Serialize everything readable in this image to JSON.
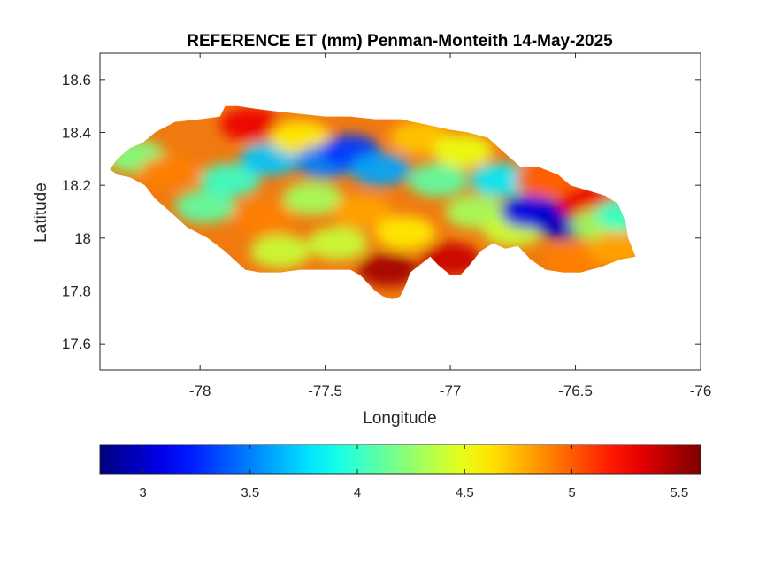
{
  "chart_data": {
    "type": "heatmap",
    "title": "REFERENCE ET (mm) Penman-Monteith 14-May-2025",
    "xlabel": "Longitude",
    "ylabel": "Latitude",
    "xlim": [
      -78.4,
      -76
    ],
    "ylim": [
      17.5,
      18.7
    ],
    "xticks": [
      -78,
      -77.5,
      -77,
      -76.5,
      -76
    ],
    "yticks": [
      17.6,
      17.8,
      18,
      18.2,
      18.4,
      18.6
    ],
    "colormap": "jet",
    "color_limits": [
      2.8,
      5.6
    ],
    "colorbar_ticks": [
      3,
      3.5,
      4,
      4.5,
      5,
      5.5
    ],
    "colorbar_location": "southoutside",
    "grid": false,
    "region_outline": [
      [
        -78.36,
        18.26
      ],
      [
        -78.33,
        18.3
      ],
      [
        -78.28,
        18.34
      ],
      [
        -78.23,
        18.36
      ],
      [
        -78.18,
        18.4
      ],
      [
        -78.1,
        18.44
      ],
      [
        -78.0,
        18.45
      ],
      [
        -77.92,
        18.46
      ],
      [
        -77.9,
        18.5
      ],
      [
        -77.85,
        18.5
      ],
      [
        -77.78,
        18.49
      ],
      [
        -77.7,
        18.48
      ],
      [
        -77.6,
        18.47
      ],
      [
        -77.5,
        18.46
      ],
      [
        -77.4,
        18.46
      ],
      [
        -77.3,
        18.45
      ],
      [
        -77.2,
        18.45
      ],
      [
        -77.1,
        18.43
      ],
      [
        -77.0,
        18.41
      ],
      [
        -76.93,
        18.4
      ],
      [
        -76.85,
        18.38
      ],
      [
        -76.78,
        18.32
      ],
      [
        -76.72,
        18.27
      ],
      [
        -76.65,
        18.27
      ],
      [
        -76.57,
        18.24
      ],
      [
        -76.52,
        18.2
      ],
      [
        -76.45,
        18.18
      ],
      [
        -76.38,
        18.16
      ],
      [
        -76.33,
        18.13
      ],
      [
        -76.3,
        18.06
      ],
      [
        -76.29,
        18.0
      ],
      [
        -76.26,
        17.93
      ],
      [
        -76.32,
        17.92
      ],
      [
        -76.4,
        17.89
      ],
      [
        -76.48,
        17.87
      ],
      [
        -76.55,
        17.87
      ],
      [
        -76.62,
        17.88
      ],
      [
        -76.68,
        17.92
      ],
      [
        -76.73,
        17.97
      ],
      [
        -76.78,
        17.96
      ],
      [
        -76.83,
        17.98
      ],
      [
        -76.88,
        17.95
      ],
      [
        -76.93,
        17.89
      ],
      [
        -76.96,
        17.86
      ],
      [
        -77.0,
        17.86
      ],
      [
        -77.05,
        17.9
      ],
      [
        -77.08,
        17.93
      ],
      [
        -77.12,
        17.9
      ],
      [
        -77.16,
        17.87
      ],
      [
        -77.18,
        17.82
      ],
      [
        -77.2,
        17.78
      ],
      [
        -77.22,
        17.77
      ],
      [
        -77.24,
        17.77
      ],
      [
        -77.27,
        17.78
      ],
      [
        -77.3,
        17.8
      ],
      [
        -77.33,
        17.83
      ],
      [
        -77.36,
        17.86
      ],
      [
        -77.4,
        17.88
      ],
      [
        -77.46,
        17.88
      ],
      [
        -77.52,
        17.88
      ],
      [
        -77.6,
        17.88
      ],
      [
        -77.68,
        17.87
      ],
      [
        -77.76,
        17.87
      ],
      [
        -77.82,
        17.88
      ],
      [
        -77.9,
        17.95
      ],
      [
        -77.97,
        18.0
      ],
      [
        -78.05,
        18.04
      ],
      [
        -78.12,
        18.1
      ],
      [
        -78.18,
        18.15
      ],
      [
        -78.22,
        18.2
      ],
      [
        -78.28,
        18.23
      ],
      [
        -78.33,
        18.24
      ],
      [
        -78.36,
        18.26
      ]
    ],
    "value_clusters": [
      {
        "lon": -78.26,
        "lat": 18.31,
        "value": 4.2
      },
      {
        "lon": -78.12,
        "lat": 18.25,
        "value": 4.9
      },
      {
        "lon": -77.98,
        "lat": 18.12,
        "value": 4.1
      },
      {
        "lon": -77.88,
        "lat": 18.22,
        "value": 4.0
      },
      {
        "lon": -77.8,
        "lat": 18.43,
        "value": 5.3
      },
      {
        "lon": -77.75,
        "lat": 18.08,
        "value": 4.9
      },
      {
        "lon": -77.72,
        "lat": 18.3,
        "value": 3.7
      },
      {
        "lon": -77.68,
        "lat": 17.95,
        "value": 4.4
      },
      {
        "lon": -77.6,
        "lat": 18.38,
        "value": 4.6
      },
      {
        "lon": -77.55,
        "lat": 18.15,
        "value": 4.3
      },
      {
        "lon": -77.5,
        "lat": 18.29,
        "value": 3.5
      },
      {
        "lon": -77.45,
        "lat": 17.98,
        "value": 4.4
      },
      {
        "lon": -77.4,
        "lat": 18.33,
        "value": 3.3
      },
      {
        "lon": -77.35,
        "lat": 18.1,
        "value": 4.8
      },
      {
        "lon": -77.28,
        "lat": 18.26,
        "value": 3.6
      },
      {
        "lon": -77.25,
        "lat": 17.88,
        "value": 5.5
      },
      {
        "lon": -77.18,
        "lat": 18.02,
        "value": 4.6
      },
      {
        "lon": -77.12,
        "lat": 18.38,
        "value": 4.7
      },
      {
        "lon": -77.05,
        "lat": 18.22,
        "value": 4.1
      },
      {
        "lon": -77.0,
        "lat": 17.92,
        "value": 5.4
      },
      {
        "lon": -76.95,
        "lat": 18.33,
        "value": 4.5
      },
      {
        "lon": -76.9,
        "lat": 18.1,
        "value": 4.3
      },
      {
        "lon": -76.8,
        "lat": 18.22,
        "value": 3.8
      },
      {
        "lon": -76.75,
        "lat": 18.03,
        "value": 4.4
      },
      {
        "lon": -76.68,
        "lat": 18.1,
        "value": 3.1
      },
      {
        "lon": -76.62,
        "lat": 18.22,
        "value": 5.0
      },
      {
        "lon": -76.55,
        "lat": 18.06,
        "value": 3.0
      },
      {
        "lon": -76.5,
        "lat": 17.92,
        "value": 4.9
      },
      {
        "lon": -76.45,
        "lat": 18.13,
        "value": 5.3
      },
      {
        "lon": -76.4,
        "lat": 18.05,
        "value": 4.3
      },
      {
        "lon": -76.33,
        "lat": 17.96,
        "value": 4.8
      },
      {
        "lon": -76.3,
        "lat": 18.09,
        "value": 4.0
      }
    ]
  }
}
